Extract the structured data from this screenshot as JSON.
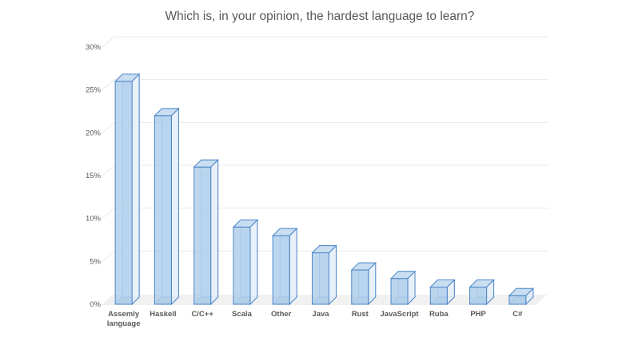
{
  "chart_data": {
    "type": "bar",
    "style": "3d-box",
    "title": "Which is, in your opinion, the hardest language to learn?",
    "categories": [
      "Assemly language",
      "Haskell",
      "C/C++",
      "Scala",
      "Other",
      "Java",
      "Rust",
      "JavaScript",
      "Ruba",
      "PHP",
      "C#"
    ],
    "values": [
      26,
      22,
      16,
      9,
      8,
      6,
      4,
      3,
      2,
      2,
      1
    ],
    "unit": "%",
    "xlabel": "",
    "ylabel": "",
    "ylim": [
      0,
      30
    ],
    "ytick_step": 5,
    "ytick_labels": [
      "0%",
      "5%",
      "10%",
      "15%",
      "20%",
      "25%",
      "30%"
    ],
    "grid": true,
    "legend": null,
    "colors": {
      "background": "#FFFFFF",
      "text": "#595959",
      "gridline": "#E9E9E9",
      "floor": "#F1F1F1",
      "bar_edge": "#4E86C6",
      "bar_back_edge": "#8AB4DE",
      "bar_front": "#A9CBE9",
      "bar_top": "#C7DCF1",
      "bar_side": "#E6EFF9",
      "bar_bottom": "#CBDFF2",
      "bar_back": "#EAF2FA"
    }
  }
}
